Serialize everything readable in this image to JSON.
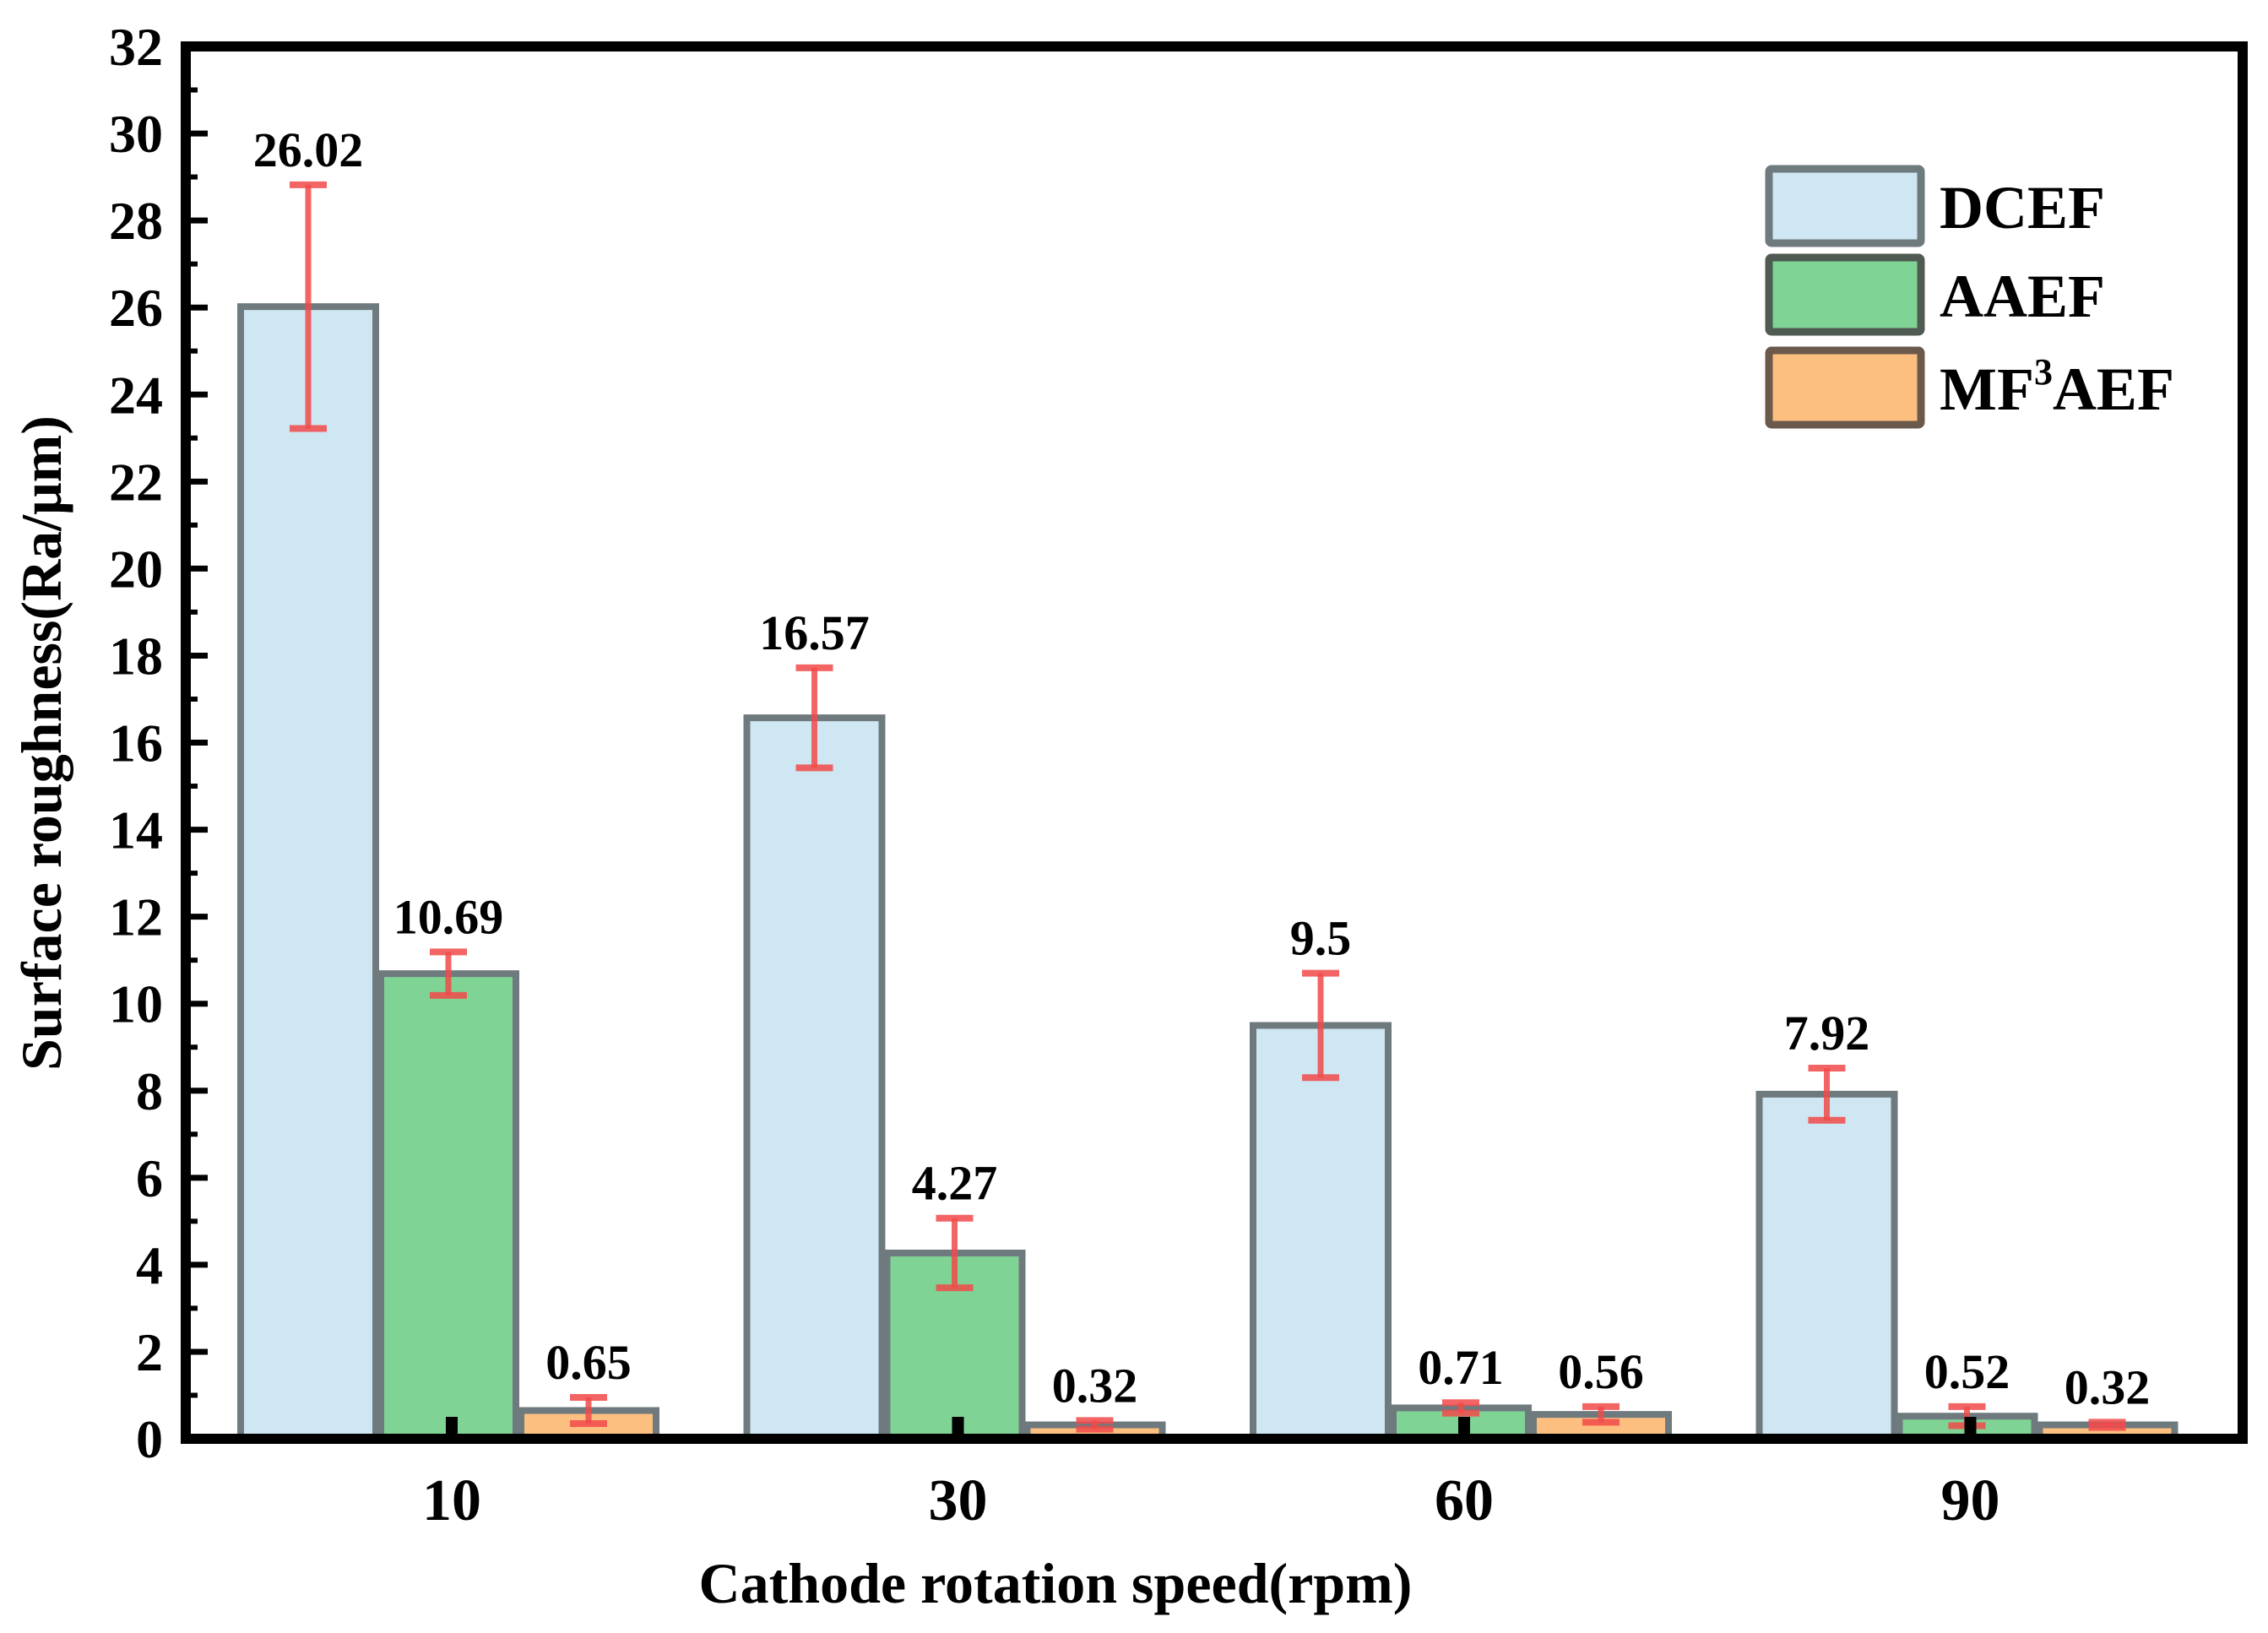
{
  "chart_data": {
    "type": "bar",
    "title": "",
    "xlabel": "Cathode rotation speed(rpm)",
    "ylabel": "Surface roughness(Ra/μm)",
    "ylim": [
      0,
      32
    ],
    "yticks": [
      0,
      2,
      4,
      6,
      8,
      10,
      12,
      14,
      16,
      18,
      20,
      22,
      24,
      26,
      28,
      30,
      32
    ],
    "categories": [
      "10",
      "30",
      "60",
      "90"
    ],
    "legend_position": "top-right",
    "grid": false,
    "series": [
      {
        "name": "DCEF",
        "color": "#cfe7f2",
        "values": [
          26.02,
          16.57,
          9.5,
          7.92
        ],
        "errors": [
          2.8,
          1.15,
          1.2,
          0.6
        ],
        "labels": [
          "26.02",
          "16.57",
          "9.5",
          "7.92"
        ]
      },
      {
        "name": "AAEF",
        "color": "#7fd395",
        "values": [
          10.69,
          4.27,
          0.71,
          0.52
        ],
        "errors": [
          0.5,
          0.8,
          0.12,
          0.22
        ],
        "labels": [
          "10.69",
          "4.27",
          "0.71",
          "0.52"
        ]
      },
      {
        "name": "MF3AEF",
        "color": "#fdbf80",
        "values": [
          0.65,
          0.32,
          0.56,
          0.32
        ],
        "errors": [
          0.3,
          0.1,
          0.18,
          0.06
        ],
        "labels": [
          "0.65",
          "0.32",
          "0.56",
          "0.32"
        ]
      }
    ]
  },
  "legend": {
    "items": [
      {
        "name": "DCEF",
        "color": "#cfe7f2"
      },
      {
        "name": "AAEF",
        "color": "#7fd395"
      },
      {
        "name": "MF³AEF",
        "base": "MF",
        "sup": "3",
        "rest": "AEF",
        "color": "#fdbf80"
      }
    ]
  },
  "style": {
    "bar_outline": "#6f7a7e",
    "error_color": "#f24b4b",
    "axis_color": "#000000"
  }
}
